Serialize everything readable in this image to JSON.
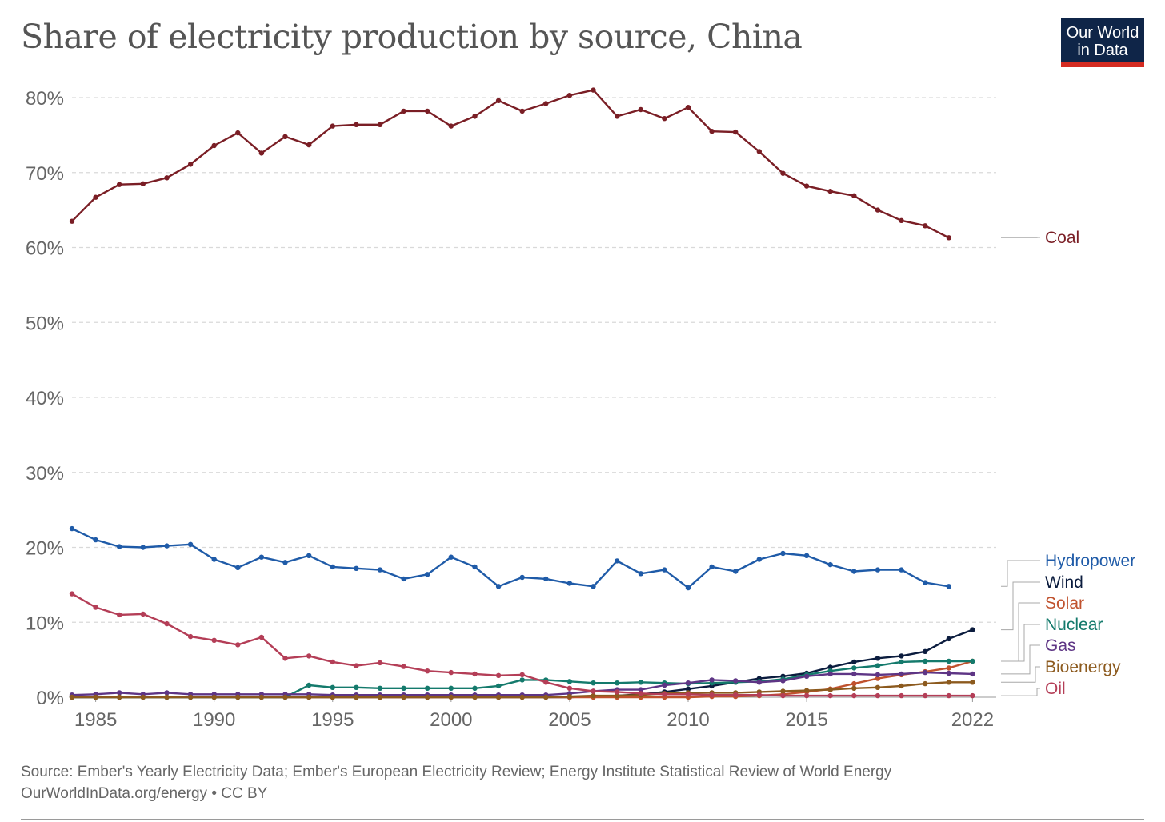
{
  "logo": {
    "line1": "Our World",
    "line2": "in Data"
  },
  "footer": {
    "source": "Source: Ember's Yearly Electricity Data; Ember's European Electricity Review; Energy Institute Statistical Review of World Energy",
    "credit": "OurWorldInData.org/energy • CC BY"
  },
  "chart_data": {
    "type": "line",
    "title": "Share of electricity production by source, China",
    "xlabel": "",
    "ylabel": "",
    "x": [
      1984,
      1985,
      1986,
      1987,
      1988,
      1989,
      1990,
      1991,
      1992,
      1993,
      1994,
      1995,
      1996,
      1997,
      1998,
      1999,
      2000,
      2001,
      2002,
      2003,
      2004,
      2005,
      2006,
      2007,
      2008,
      2009,
      2010,
      2011,
      2012,
      2013,
      2014,
      2015,
      2016,
      2017,
      2018,
      2019,
      2020,
      2021,
      2022,
      2023
    ],
    "xticks": [
      1985,
      1990,
      1995,
      2000,
      2005,
      2010,
      2015,
      2022
    ],
    "xtick_labels": [
      "1985",
      "1990",
      "1995",
      "2000",
      "2005",
      "2010",
      "2015",
      "2022"
    ],
    "xlim": [
      1984,
      2023
    ],
    "ylim": [
      0,
      80
    ],
    "yticks": [
      0,
      10,
      20,
      30,
      40,
      50,
      60,
      70,
      80
    ],
    "ytick_labels": [
      "0%",
      "10%",
      "20%",
      "30%",
      "40%",
      "50%",
      "60%",
      "70%",
      "80%"
    ],
    "grid": "horizontal-dashed",
    "legend": "right-end-labels",
    "series": [
      {
        "name": "Coal",
        "color": "#7a1e25",
        "values": [
          63.5,
          66.7,
          68.4,
          68.5,
          69.3,
          71.1,
          73.6,
          75.3,
          72.6,
          74.8,
          73.7,
          76.2,
          76.4,
          76.4,
          78.2,
          78.2,
          76.2,
          77.5,
          79.6,
          78.2,
          79.2,
          80.3,
          81.0,
          77.5,
          78.4,
          77.2,
          78.7,
          75.5,
          75.4,
          72.8,
          69.9,
          68.2,
          67.5,
          66.9,
          65.0,
          63.6,
          62.9,
          61.3,
          null,
          null
        ]
      },
      {
        "name": "Hydropower",
        "color": "#1f5ba8",
        "values": [
          22.5,
          21.0,
          20.1,
          20.0,
          20.2,
          20.4,
          18.4,
          17.3,
          18.7,
          18.0,
          18.9,
          17.4,
          17.2,
          17.0,
          15.8,
          16.4,
          18.7,
          17.4,
          14.8,
          16.0,
          15.8,
          15.2,
          14.8,
          18.2,
          16.5,
          17.0,
          14.6,
          17.4,
          16.8,
          18.4,
          19.2,
          18.9,
          17.7,
          16.8,
          17.0,
          17.0,
          15.3,
          14.8,
          null,
          null
        ]
      },
      {
        "name": "Wind",
        "color": "#0b1c3e",
        "values": [
          0,
          0,
          0,
          0,
          0,
          0,
          0,
          0,
          0,
          0,
          0,
          0,
          0,
          0,
          0,
          0,
          0,
          0,
          0,
          0,
          0,
          0,
          0.1,
          0.2,
          0.4,
          0.7,
          1.1,
          1.5,
          2.0,
          2.5,
          2.8,
          3.2,
          4.0,
          4.7,
          5.2,
          5.5,
          6.1,
          7.8,
          9.0,
          null
        ]
      },
      {
        "name": "Solar",
        "color": "#c0522e",
        "values": [
          0,
          0,
          0,
          0,
          0,
          0,
          0,
          0,
          0,
          0,
          0,
          0,
          0,
          0,
          0,
          0,
          0,
          0,
          0,
          0,
          0,
          0,
          0,
          0,
          0,
          0,
          0,
          0.1,
          0.1,
          0.2,
          0.4,
          0.7,
          1.1,
          1.8,
          2.5,
          3.0,
          3.4,
          3.9,
          4.8,
          null
        ]
      },
      {
        "name": "Nuclear",
        "color": "#147a6c",
        "values": [
          0,
          0,
          0,
          0,
          0,
          0,
          0,
          0,
          0,
          0,
          1.6,
          1.3,
          1.3,
          1.2,
          1.2,
          1.2,
          1.2,
          1.2,
          1.5,
          2.3,
          2.3,
          2.1,
          1.9,
          1.9,
          2.0,
          1.9,
          1.8,
          1.9,
          2.0,
          2.1,
          2.4,
          3.0,
          3.5,
          3.9,
          4.2,
          4.7,
          4.8,
          4.8,
          4.8,
          null
        ]
      },
      {
        "name": "Gas",
        "color": "#5e3585",
        "values": [
          0.3,
          0.4,
          0.6,
          0.4,
          0.6,
          0.4,
          0.4,
          0.4,
          0.4,
          0.4,
          0.4,
          0.3,
          0.3,
          0.3,
          0.3,
          0.3,
          0.3,
          0.3,
          0.3,
          0.3,
          0.3,
          0.5,
          0.8,
          1.0,
          1.0,
          1.6,
          1.9,
          2.3,
          2.2,
          2.0,
          2.2,
          2.8,
          3.1,
          3.1,
          3.0,
          3.1,
          3.3,
          3.2,
          3.1,
          null
        ]
      },
      {
        "name": "Bioenergy",
        "color": "#8c5a1e",
        "values": [
          0,
          0,
          0,
          0,
          0,
          0,
          0,
          0,
          0,
          0,
          0,
          0,
          0,
          0,
          0,
          0,
          0,
          0,
          0,
          0,
          0,
          0.1,
          0.2,
          0.2,
          0.3,
          0.5,
          0.6,
          0.6,
          0.6,
          0.7,
          0.8,
          0.9,
          1.0,
          1.2,
          1.3,
          1.5,
          1.8,
          2.0,
          2.0,
          null
        ]
      },
      {
        "name": "Oil",
        "color": "#b43e57",
        "values": [
          13.8,
          12.0,
          11.0,
          11.1,
          9.8,
          8.1,
          7.6,
          7.0,
          8.0,
          5.2,
          5.5,
          4.7,
          4.2,
          4.6,
          4.1,
          3.5,
          3.3,
          3.1,
          2.9,
          3.0,
          2.0,
          1.2,
          0.8,
          0.7,
          0.5,
          0.4,
          0.4,
          0.3,
          0.3,
          0.3,
          0.2,
          0.2,
          0.2,
          0.2,
          0.2,
          0.2,
          0.2,
          0.2,
          0.2,
          null
        ]
      }
    ]
  }
}
